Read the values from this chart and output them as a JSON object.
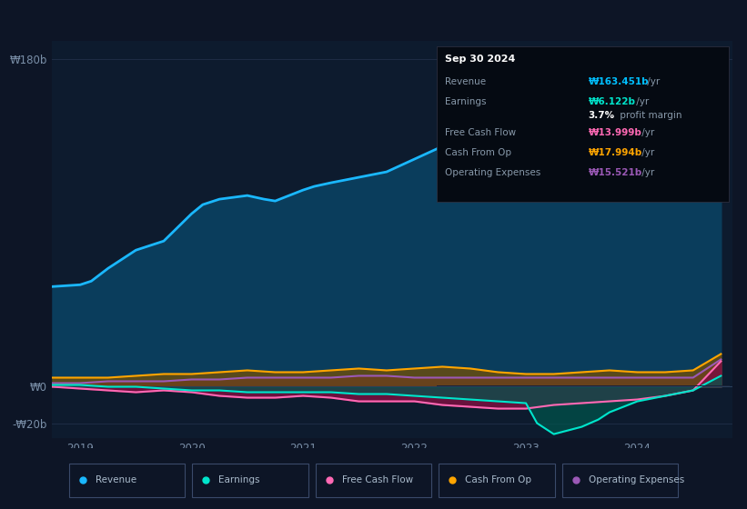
{
  "bg_color": "#0d1526",
  "plot_bg_color": "#0d1b2e",
  "grid_color": "#1e2d45",
  "tooltip": {
    "date": "Sep 30 2024",
    "rows": [
      {
        "label": "Revenue",
        "value": "₩163.451b",
        "unit": " /yr",
        "color": "#00bfff"
      },
      {
        "label": "Earnings",
        "value": "₩6.122b",
        "unit": " /yr",
        "color": "#00e5cc"
      },
      {
        "label": "",
        "value": "3.7%",
        "unit": " profit margin",
        "color": "#ffffff"
      },
      {
        "label": "Free Cash Flow",
        "value": "₩13.999b",
        "unit": " /yr",
        "color": "#ff69b4"
      },
      {
        "label": "Cash From Op",
        "value": "₩17.994b",
        "unit": " /yr",
        "color": "#ffa500"
      },
      {
        "label": "Operating Expenses",
        "value": "₩15.521b",
        "unit": " /yr",
        "color": "#9b59b6"
      }
    ]
  },
  "ylim": [
    -28,
    190
  ],
  "ytick_positions": [
    -20,
    0,
    180
  ],
  "ytick_labels": [
    "-₩20b",
    "₩0",
    "₩180b"
  ],
  "xtick_positions": [
    2019,
    2020,
    2021,
    2022,
    2023,
    2024
  ],
  "xtick_labels": [
    "2019",
    "2020",
    "2021",
    "2022",
    "2023",
    "2024"
  ],
  "series": {
    "revenue": {
      "color": "#1ab8ff",
      "fill_color": "#0a3d5c",
      "linewidth": 2.0,
      "x": [
        2018.75,
        2019.0,
        2019.1,
        2019.25,
        2019.5,
        2019.75,
        2020.0,
        2020.1,
        2020.25,
        2020.5,
        2020.65,
        2020.75,
        2021.0,
        2021.1,
        2021.25,
        2021.5,
        2021.75,
        2022.0,
        2022.25,
        2022.5,
        2022.75,
        2023.0,
        2023.1,
        2023.25,
        2023.5,
        2023.65,
        2023.75,
        2024.0,
        2024.25,
        2024.5,
        2024.75
      ],
      "y": [
        55,
        56,
        58,
        65,
        75,
        80,
        95,
        100,
        103,
        105,
        103,
        102,
        108,
        110,
        112,
        115,
        118,
        125,
        132,
        138,
        140,
        145,
        148,
        150,
        148,
        150,
        152,
        148,
        150,
        152,
        163
      ]
    },
    "earnings": {
      "color": "#00e5cc",
      "fill_color": "#00564d",
      "linewidth": 1.5,
      "x": [
        2018.75,
        2019.0,
        2019.25,
        2019.5,
        2019.75,
        2020.0,
        2020.25,
        2020.5,
        2020.75,
        2021.0,
        2021.25,
        2021.5,
        2021.75,
        2022.0,
        2022.25,
        2022.5,
        2022.75,
        2023.0,
        2023.1,
        2023.25,
        2023.5,
        2023.65,
        2023.75,
        2024.0,
        2024.25,
        2024.5,
        2024.75
      ],
      "y": [
        1,
        1,
        0,
        0,
        -1,
        -2,
        -2,
        -3,
        -3,
        -3,
        -3,
        -4,
        -4,
        -5,
        -6,
        -7,
        -8,
        -9,
        -20,
        -26,
        -22,
        -18,
        -14,
        -8,
        -5,
        -2,
        6
      ]
    },
    "free_cash_flow": {
      "color": "#ff69b4",
      "fill_color": "#7a1040",
      "linewidth": 1.5,
      "x": [
        2018.75,
        2019.0,
        2019.25,
        2019.5,
        2019.75,
        2020.0,
        2020.25,
        2020.5,
        2020.75,
        2021.0,
        2021.25,
        2021.5,
        2021.75,
        2022.0,
        2022.25,
        2022.5,
        2022.75,
        2023.0,
        2023.25,
        2023.5,
        2023.75,
        2024.0,
        2024.25,
        2024.5,
        2024.75
      ],
      "y": [
        0,
        -1,
        -2,
        -3,
        -2,
        -3,
        -5,
        -6,
        -6,
        -5,
        -6,
        -8,
        -8,
        -8,
        -10,
        -11,
        -12,
        -12,
        -10,
        -9,
        -8,
        -7,
        -5,
        -2,
        14
      ]
    },
    "cash_from_op": {
      "color": "#ffa500",
      "fill_color": "#7a5000",
      "linewidth": 1.5,
      "x": [
        2018.75,
        2019.0,
        2019.25,
        2019.5,
        2019.75,
        2020.0,
        2020.25,
        2020.5,
        2020.75,
        2021.0,
        2021.25,
        2021.5,
        2021.75,
        2022.0,
        2022.25,
        2022.5,
        2022.75,
        2023.0,
        2023.25,
        2023.5,
        2023.75,
        2024.0,
        2024.25,
        2024.5,
        2024.75
      ],
      "y": [
        5,
        5,
        5,
        6,
        7,
        7,
        8,
        9,
        8,
        8,
        9,
        10,
        9,
        10,
        11,
        10,
        8,
        7,
        7,
        8,
        9,
        8,
        8,
        9,
        18
      ]
    },
    "operating_expenses": {
      "color": "#9b59b6",
      "fill_color": "#4a2060",
      "linewidth": 1.5,
      "x": [
        2018.75,
        2019.0,
        2019.25,
        2019.5,
        2019.75,
        2020.0,
        2020.25,
        2020.5,
        2020.75,
        2021.0,
        2021.25,
        2021.5,
        2021.75,
        2022.0,
        2022.25,
        2022.5,
        2022.75,
        2023.0,
        2023.25,
        2023.5,
        2023.75,
        2024.0,
        2024.25,
        2024.5,
        2024.75
      ],
      "y": [
        2,
        2,
        3,
        3,
        3,
        4,
        4,
        5,
        5,
        5,
        5,
        6,
        6,
        5,
        5,
        5,
        5,
        5,
        5,
        5,
        5,
        5,
        5,
        5,
        15
      ]
    }
  },
  "legend": [
    {
      "label": "Revenue",
      "color": "#1ab8ff"
    },
    {
      "label": "Earnings",
      "color": "#00e5cc"
    },
    {
      "label": "Free Cash Flow",
      "color": "#ff69b4"
    },
    {
      "label": "Cash From Op",
      "color": "#ffa500"
    },
    {
      "label": "Operating Expenses",
      "color": "#9b59b6"
    }
  ]
}
